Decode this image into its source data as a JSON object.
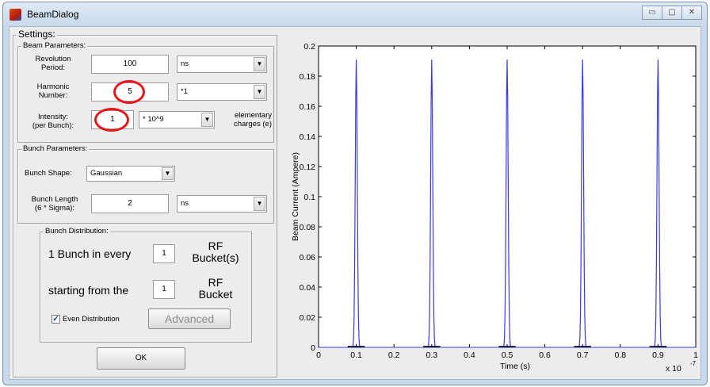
{
  "window": {
    "title": "BeamDialog",
    "buttons": [
      "▭",
      "▢",
      "✕"
    ]
  },
  "settings": {
    "title": "Settings:",
    "beam": {
      "title": "Beam Parameters:",
      "rev_label_1": "Revolution",
      "rev_label_2": "Period:",
      "rev_value": "100",
      "rev_unit": "ns",
      "harm_label_1": "Harmonic",
      "harm_label_2": "Number:",
      "harm_value": "5",
      "harm_mult": "*1",
      "int_label_1": "Intensity:",
      "int_label_2": "(per Bunch):",
      "int_value": "1",
      "int_mult": "* 10^9",
      "int_unit_1": "elementary",
      "int_unit_2": "charges (e)"
    },
    "bunch": {
      "title": "Bunch Parameters:",
      "shape_label": "Bunch Shape:",
      "shape_value": "Gaussian",
      "len_label_1": "Bunch Length",
      "len_label_2": "(6 * Sigma):",
      "len_value": "2",
      "len_unit": "ns"
    },
    "dist": {
      "title": "Bunch Distribution:",
      "every_label": "1 Bunch in every",
      "every_value": "1",
      "every_unit_1": "RF",
      "every_unit_2": "Bucket(s)",
      "start_label": "starting from the",
      "start_value": "1",
      "start_unit_1": "RF",
      "start_unit_2": "Bucket",
      "even_label": "Even Distribution",
      "even_checked": true,
      "advanced_label": "Advanced"
    },
    "ok_label": "OK"
  },
  "chart_data": {
    "type": "line",
    "xlabel": "Time (s)",
    "ylabel": "Beam Current (Ampere)",
    "x_multiplier": "x 10",
    "x_multiplier_exp": "-7",
    "xlim": [
      0,
      1
    ],
    "ylim": [
      0,
      0.2
    ],
    "xticks": [
      0,
      0.1,
      0.2,
      0.3,
      0.4,
      0.5,
      0.6,
      0.7,
      0.8,
      0.9,
      1
    ],
    "yticks": [
      0,
      0.02,
      0.04,
      0.06,
      0.08,
      0.1,
      0.12,
      0.14,
      0.16,
      0.18,
      0.2
    ],
    "line_color": "#3a3ae8",
    "peaks": [
      {
        "x": 0.1,
        "y": 0.191
      },
      {
        "x": 0.3,
        "y": 0.191
      },
      {
        "x": 0.5,
        "y": 0.191
      },
      {
        "x": 0.7,
        "y": 0.191
      },
      {
        "x": 0.9,
        "y": 0.191
      }
    ],
    "peak_base_width": 0.02
  },
  "colors": {
    "highlight": "#e8141a",
    "window_bg": "#ececec"
  }
}
